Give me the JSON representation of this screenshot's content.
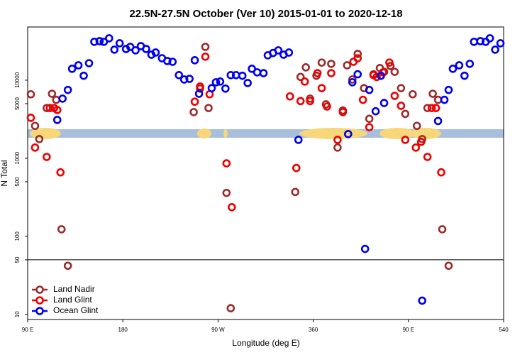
{
  "chart_data": {
    "type": "scatter",
    "title": "22.5N-27.5N October (Ver 10)   2015-01-01 to 2020-12-18",
    "x_label": "Longitude (deg E)",
    "y_label": "N Total",
    "y_log": true,
    "xlim": [
      90,
      540
    ],
    "ylim": [
      8.6,
      48000
    ],
    "xticks": [
      {
        "value": 90,
        "label": "90 E"
      },
      180,
      {
        "value": 270,
        "label": "90 W"
      },
      360,
      {
        "value": 450,
        "label": "90 E"
      },
      540
    ],
    "yticks": [
      10,
      50,
      100,
      500,
      1000,
      5000,
      10000
    ],
    "hlines": [
      50
    ],
    "legend": "bottom-left",
    "series": [
      {
        "name": "Land Nadir",
        "color": "#9b2c2c",
        "x": [
          93,
          97,
          101,
          108,
          113,
          117,
          122,
          128,
          247,
          253,
          258,
          261,
          278,
          282,
          343,
          348,
          353,
          357,
          363,
          368,
          372,
          377,
          383,
          388,
          392,
          397,
          402,
          408,
          413,
          417,
          423,
          427,
          433,
          437,
          443,
          447,
          454,
          458,
          463,
          468,
          473,
          478,
          482,
          488
        ],
        "values": [
          6600,
          2600,
          1760,
          4400,
          6700,
          5600,
          123,
          42,
          3900,
          7800,
          26700,
          4400,
          360,
          12,
          370,
          11000,
          14600,
          5800,
          11400,
          16800,
          4900,
          16200,
          1370,
          4100,
          15500,
          10200,
          21700,
          7900,
          3200,
          11900,
          14300,
          12800,
          15200,
          12800,
          7900,
          3700,
          6600,
          2600,
          1760,
          4400,
          6700,
          5600,
          123,
          42
        ]
      },
      {
        "name": "Land Glint",
        "color": "#ee0000",
        "x": [
          93,
          97,
          108,
          111,
          115,
          118,
          121,
          248,
          253,
          258,
          262,
          278,
          283,
          338,
          344,
          348,
          352,
          357,
          364,
          368,
          373,
          377,
          383,
          388,
          398,
          402,
          407,
          413,
          417,
          420,
          426,
          432,
          437,
          443,
          447,
          457,
          462,
          468,
          472,
          476,
          481
        ],
        "values": [
          3300,
          1370,
          1040,
          4400,
          4400,
          4150,
          660,
          5300,
          8300,
          20000,
          6600,
          860,
          236,
          6200,
          750,
          5400,
          9600,
          5400,
          12300,
          7900,
          4600,
          12300,
          1720,
          3900,
          17200,
          19100,
          5600,
          2500,
          11600,
          11000,
          12600,
          16800,
          6300,
          4700,
          1720,
          1370,
          1620,
          1040,
          4400,
          4400,
          660
        ]
      },
      {
        "name": "Ocean Glint",
        "color": "#0000ee",
        "x": [
          118,
          123,
          128,
          132,
          138,
          143,
          148,
          153,
          158,
          162,
          167,
          172,
          177,
          183,
          187,
          192,
          197,
          202,
          207,
          211,
          217,
          222,
          227,
          233,
          238,
          243,
          248,
          252,
          264,
          268,
          272,
          277,
          282,
          287,
          293,
          298,
          302,
          307,
          313,
          317,
          322,
          327,
          332,
          337,
          346,
          393,
          397,
          402,
          409,
          413,
          419,
          424,
          427,
          463,
          478,
          484,
          488,
          492,
          498,
          503,
          508,
          512,
          518,
          523,
          527,
          532,
          537
        ],
        "values": [
          3100,
          5800,
          7500,
          14000,
          15500,
          11400,
          16500,
          31000,
          31600,
          31000,
          34400,
          24600,
          29700,
          25100,
          26700,
          24100,
          27300,
          25100,
          21200,
          22600,
          19100,
          17600,
          17200,
          11600,
          10200,
          10400,
          18000,
          6700,
          7900,
          9400,
          9600,
          7800,
          11600,
          11600,
          11400,
          9200,
          14000,
          12600,
          12300,
          20800,
          22300,
          24100,
          21200,
          22600,
          1720,
          2040,
          9400,
          11900,
          69,
          7500,
          4000,
          11400,
          5100,
          15,
          3000,
          5600,
          7500,
          14000,
          15500,
          11400,
          16200,
          31000,
          31600,
          31000,
          34400,
          24600,
          29700
        ]
      }
    ]
  }
}
